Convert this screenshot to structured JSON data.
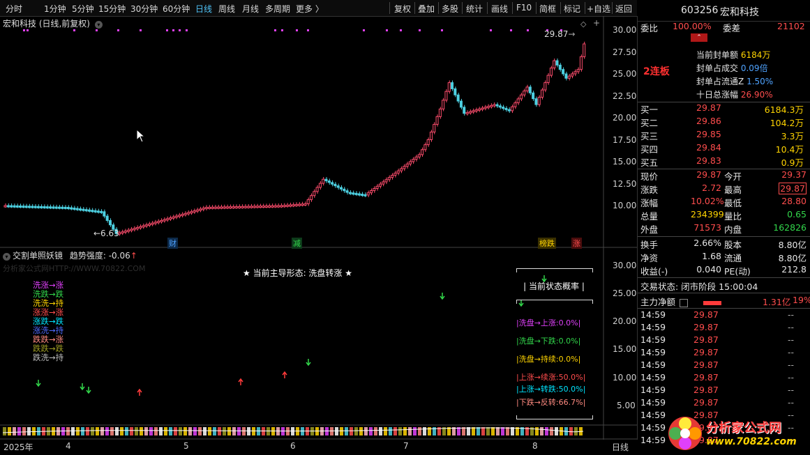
{
  "toolbar": {
    "periods": [
      "分时",
      "1分钟",
      "5分钟",
      "15分钟",
      "30分钟",
      "60分钟",
      "日线",
      "周线",
      "月线",
      "多周期",
      "更多 〉"
    ],
    "active_period": "日线",
    "actions": [
      "复权",
      "叠加",
      "多股",
      "统计",
      "画线",
      "F10",
      "简框",
      "标记",
      "+自选",
      "返回"
    ]
  },
  "main_chart": {
    "title": "宏和科技 (日线,前复权)",
    "high_annotation": "29.87",
    "low_annotation": "←6.63",
    "y_ticks": [
      "30.00",
      "27.50",
      "25.00",
      "22.50",
      "20.00",
      "17.50",
      "15.00",
      "12.50",
      "10.00"
    ],
    "markers": [
      {
        "label": "财",
        "color": "#4fa3ff"
      },
      {
        "label": "减",
        "color": "#32d74b"
      },
      {
        "label": "榜跌",
        "color": "#ffd400"
      },
      {
        "label": "涨",
        "color": "#ff4d4d"
      }
    ]
  },
  "indicator": {
    "name": "交割单照妖镜",
    "strength_label": "趋势强度:",
    "strength_value": "-0.06",
    "watermark": "分析家公式网HTTP://WWW.70822.COM",
    "main_form": "★ 当前主导形态: 洗盘转涨 ★",
    "legend": [
      {
        "text": "洗涨→涨",
        "color": "#e040fb"
      },
      {
        "text": "洗跌→跌",
        "color": "#32d74b"
      },
      {
        "text": "洗洗→持",
        "color": "#ffd400"
      },
      {
        "text": "涨涨→涨",
        "color": "#ff4d4d"
      },
      {
        "text": "涨跌→跌",
        "color": "#00e5ff"
      },
      {
        "text": "涨洗→持",
        "color": "#4f6bff"
      },
      {
        "text": "跌跌→涨",
        "color": "#ff8a80"
      },
      {
        "text": "跌跌→跌",
        "color": "#9e9d24"
      },
      {
        "text": "跌洗→持",
        "color": "#bdbdbd"
      }
    ],
    "prob_title": "当前状态概率",
    "probs": [
      {
        "text": "|洗盘→上涨:0.0%|",
        "color": "#e040fb"
      },
      {
        "text": "|洗盘→下跌:0.0%|",
        "color": "#32d74b"
      },
      {
        "text": "|洗盘→持续:0.0%|",
        "color": "#ffd400"
      },
      {
        "text": "|上涨→续涨:50.0%|",
        "color": "#ff4d4d"
      },
      {
        "text": "|上涨→转跌:50.0%|",
        "color": "#00e5ff"
      },
      {
        "text": "|下跌→反转:66.7%|",
        "color": "#ff8a80"
      }
    ],
    "y_ticks": [
      "30.00",
      "25.00",
      "20.00",
      "15.00",
      "10.00",
      "5.00"
    ]
  },
  "x_axis": {
    "labels": [
      "2025年",
      "4",
      "5",
      "6",
      "7",
      "8"
    ],
    "period_label": "日线"
  },
  "stock": {
    "code": "603256",
    "name": "宏和科技",
    "weibi_label": "委比",
    "weibi": "100.00%",
    "weicha_label": "委差",
    "weicha": "21102",
    "streak": "2连板",
    "seal_amount_label": "当前封单额",
    "seal_amount": "6184万",
    "seal_volume_ratio_label": "封单占成交",
    "seal_volume_ratio": "0.09倍",
    "seal_float_label": "封单占流通Z",
    "seal_float": "1.50%",
    "ten_day_label": "十日总涨幅",
    "ten_day": "26.90%",
    "bids": [
      {
        "label": "买一",
        "price": "29.87",
        "vol": "6184.3万"
      },
      {
        "label": "买二",
        "price": "29.86",
        "vol": "104.2万"
      },
      {
        "label": "买三",
        "price": "29.85",
        "vol": "3.3万"
      },
      {
        "label": "买四",
        "price": "29.84",
        "vol": "10.4万"
      },
      {
        "label": "买五",
        "price": "29.83",
        "vol": "0.9万"
      }
    ],
    "quote": [
      {
        "l1": "现价",
        "v1": "29.87",
        "l2": "今开",
        "v2": "29.37"
      },
      {
        "l1": "涨跌",
        "v1": "2.72",
        "l2": "最高",
        "v2": "29.87"
      },
      {
        "l1": "涨幅",
        "v1": "10.02%",
        "l2": "最低",
        "v2": "28.80"
      },
      {
        "l1": "总量",
        "v1": "234399",
        "l2": "量比",
        "v2": "0.65"
      },
      {
        "l1": "外盘",
        "v1": "71573",
        "l2": "内盘",
        "v2": "162826"
      }
    ],
    "fundamentals": [
      {
        "l1": "换手",
        "v1": "2.66%",
        "l2": "股本",
        "v2": "8.80亿"
      },
      {
        "l1": "净资",
        "v1": "1.68",
        "l2": "流通",
        "v2": "8.80亿"
      },
      {
        "l1": "收益(-)",
        "v1": "0.040",
        "l2": "PE(动)",
        "v2": "212.8"
      }
    ],
    "trade_status": "交易状态: 闭市阶段 15:00:04",
    "main_flow_label": "主力净额",
    "main_flow_value": "1.31亿",
    "main_flow_pct": "19%",
    "ticks": [
      {
        "time": "14:59",
        "price": "29.87",
        "vol": "--"
      },
      {
        "time": "14:59",
        "price": "29.87",
        "vol": "--"
      },
      {
        "time": "14:59",
        "price": "29.87",
        "vol": "--"
      },
      {
        "time": "14:59",
        "price": "29.87",
        "vol": "--"
      },
      {
        "time": "14:59",
        "price": "29.87",
        "vol": "--"
      },
      {
        "time": "14:59",
        "price": "29.87",
        "vol": "--"
      },
      {
        "time": "14:59",
        "price": "29.87",
        "vol": "--"
      },
      {
        "time": "14:59",
        "price": "29.87",
        "vol": "--"
      },
      {
        "time": "14:59",
        "price": "29.87",
        "vol": "--"
      },
      {
        "time": "14:59",
        "price": "29.87",
        "vol": "--"
      },
      {
        "time": "14:59",
        "price": "29.87",
        "vol": "--"
      }
    ]
  },
  "watermark_logo": {
    "title": "分析家公式网",
    "url": "www.70822.com"
  }
}
